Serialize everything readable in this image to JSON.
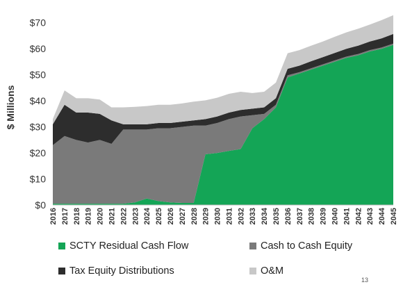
{
  "chart_data": {
    "type": "area",
    "stacked": true,
    "ylabel": "$ Millions",
    "xlabel": "",
    "ylim": [
      0,
      75
    ],
    "y_ticks": [
      0,
      10,
      20,
      30,
      40,
      50,
      60,
      70
    ],
    "y_tick_labels": [
      "$0",
      "$10",
      "$20",
      "$30",
      "$40",
      "$50",
      "$60",
      "$70"
    ],
    "grid": false,
    "legend_position": "bottom",
    "categories": [
      "2016",
      "2017",
      "2018",
      "2019",
      "2020",
      "2021",
      "2022",
      "2023",
      "2024",
      "2025",
      "2026",
      "2027",
      "2028",
      "2029",
      "2030",
      "2031",
      "2032",
      "2033",
      "2034",
      "2035",
      "2036",
      "2037",
      "2038",
      "2039",
      "2040",
      "2041",
      "2042",
      "2043",
      "2044",
      "2045"
    ],
    "series": [
      {
        "name": "SCTY Residual Cash Flow",
        "color": "#14a556",
        "values": [
          0.5,
          0.5,
          0.5,
          0.5,
          0.5,
          0.5,
          0.5,
          1.0,
          2.5,
          1.5,
          1.0,
          0.8,
          0.8,
          19.5,
          20.0,
          20.8,
          21.5,
          29.5,
          33.0,
          37.5,
          49.0,
          50.5,
          52.0,
          53.5,
          55.0,
          56.5,
          57.5,
          59.0,
          60.0,
          61.5
        ]
      },
      {
        "name": "Cash to Cash Equity",
        "color": "#7a7a7a",
        "values": [
          22.5,
          26.0,
          24.5,
          23.5,
          24.5,
          23.0,
          28.5,
          28.0,
          26.5,
          28.0,
          28.5,
          29.2,
          29.7,
          11.0,
          11.5,
          12.2,
          12.5,
          5.0,
          2.0,
          1.0,
          0.8,
          0.5,
          0.5,
          0.5,
          0.5,
          0.5,
          0.5,
          0.5,
          0.5,
          0.5
        ]
      },
      {
        "name": "Tax Equity Distributions",
        "color": "#2d2d2d",
        "values": [
          8.0,
          12.0,
          10.5,
          11.5,
          10.0,
          9.0,
          2.0,
          2.0,
          2.0,
          2.0,
          2.0,
          2.0,
          2.0,
          2.5,
          2.5,
          2.5,
          2.5,
          2.5,
          2.5,
          2.5,
          2.5,
          2.5,
          2.7,
          2.8,
          2.9,
          3.0,
          3.2,
          3.3,
          3.5,
          3.7
        ]
      },
      {
        "name": "O&M",
        "color": "#c8c8c8",
        "values": [
          2.0,
          5.5,
          5.5,
          5.5,
          5.5,
          5.0,
          6.5,
          6.7,
          7.0,
          7.0,
          7.0,
          7.0,
          7.2,
          7.2,
          7.2,
          7.2,
          7.0,
          6.0,
          6.0,
          6.0,
          6.0,
          6.0,
          6.0,
          6.0,
          6.2,
          6.3,
          6.5,
          6.5,
          7.0,
          7.2
        ]
      }
    ]
  },
  "page_number": "13"
}
